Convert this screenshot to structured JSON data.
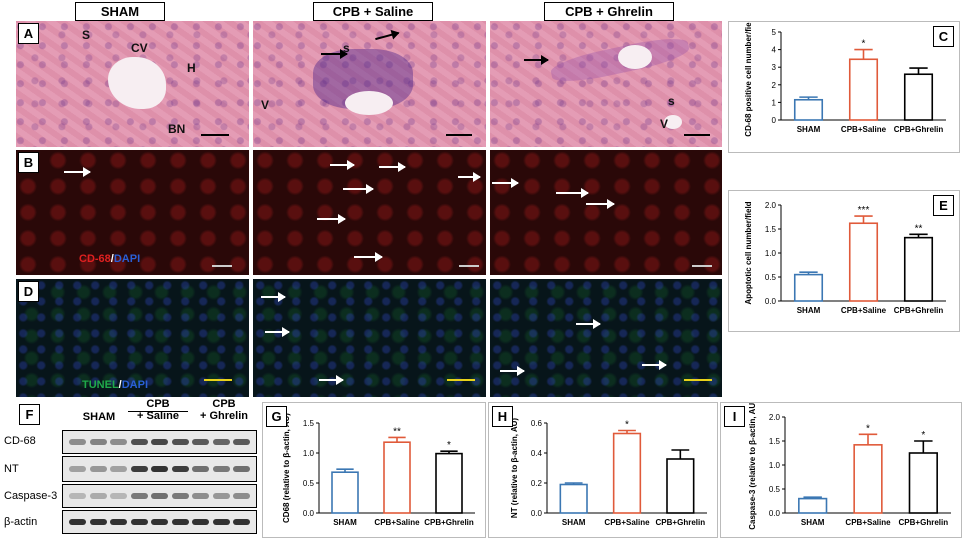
{
  "column_headers": [
    "SHAM",
    "CPB + Saline",
    "CPB + Ghrelin"
  ],
  "panel_letters": {
    "A": "A",
    "B": "B",
    "C": "C",
    "D": "D",
    "E": "E",
    "F": "F",
    "G": "G",
    "H": "H",
    "I": "I"
  },
  "he_annotations": {
    "s1": "S",
    "cv": "CV",
    "h": "H",
    "bn": "BN",
    "s2": "s",
    "v2": "V",
    "s3": "s",
    "v3": "V"
  },
  "stain_b": {
    "a": "CD-68",
    "sep": "/",
    "b": "DAPI"
  },
  "stain_d": {
    "a": "TUNEL",
    "sep": "/",
    "b": "DAPI"
  },
  "colors": {
    "sham": "#3b77b3",
    "saline": "#e05a3a",
    "ghrelin": "#000000",
    "cd68": "#e02020",
    "dapi": "#2a5fd6",
    "tunel": "#1fa84a"
  },
  "western": {
    "groups": [
      {
        "l1": "SHAM",
        "l2": ""
      },
      {
        "l1": "CPB",
        "l2": "+ Saline"
      },
      {
        "l1": "CPB",
        "l2": "+ Ghrelin"
      }
    ],
    "rows": [
      "CD-68",
      "NT",
      "Caspase-3",
      "β-actin"
    ]
  },
  "chart_data": [
    {
      "id": "C",
      "type": "bar",
      "categories": [
        "SHAM",
        "CPB+Saline",
        "CPB+Ghrelin"
      ],
      "values": [
        1.15,
        3.45,
        2.6
      ],
      "errors": [
        0.15,
        0.55,
        0.35
      ],
      "sig": [
        "",
        "*",
        ""
      ],
      "ylabel": "CD-68 positive cell number/field",
      "ylim": [
        0,
        5
      ],
      "yticks": [
        "0",
        "1",
        "2",
        "3",
        "4",
        "5"
      ],
      "ytickvals": [
        0,
        1,
        2,
        3,
        4,
        5
      ]
    },
    {
      "id": "E",
      "type": "bar",
      "categories": [
        "SHAM",
        "CPB+Saline",
        "CPB+Ghrelin"
      ],
      "values": [
        0.55,
        1.62,
        1.32
      ],
      "errors": [
        0.05,
        0.15,
        0.07
      ],
      "sig": [
        "",
        "***",
        "**"
      ],
      "ylabel": "Apoptotic cell number/field",
      "ylim": [
        0,
        2
      ],
      "yticks": [
        "0.0",
        "0.5",
        "1.0",
        "1.5",
        "2.0"
      ],
      "ytickvals": [
        0,
        0.5,
        1,
        1.5,
        2
      ]
    },
    {
      "id": "G",
      "type": "bar",
      "categories": [
        "SHAM",
        "CPB+Saline",
        "CPB+Ghrelin"
      ],
      "values": [
        0.68,
        1.18,
        0.99
      ],
      "errors": [
        0.05,
        0.08,
        0.04
      ],
      "sig": [
        "",
        "**",
        "*"
      ],
      "ylabel": "CD68 (relative to β-actin, AU)",
      "ylim": [
        0,
        1.5
      ],
      "yticks": [
        "0.0",
        "0.5",
        "1.0",
        "1.5"
      ],
      "ytickvals": [
        0,
        0.5,
        1,
        1.5
      ]
    },
    {
      "id": "H",
      "type": "bar",
      "categories": [
        "SHAM",
        "CPB+Saline",
        "CPB+Ghrelin"
      ],
      "values": [
        0.19,
        0.53,
        0.36
      ],
      "errors": [
        0.01,
        0.02,
        0.06
      ],
      "sig": [
        "",
        "*",
        ""
      ],
      "ylabel": "NT (relative to β-actin, AU)",
      "ylim": [
        0,
        0.6
      ],
      "yticks": [
        "0.0",
        "0.2",
        "0.4",
        "0.6"
      ],
      "ytickvals": [
        0,
        0.2,
        0.4,
        0.6
      ]
    },
    {
      "id": "I",
      "type": "bar",
      "categories": [
        "SHAM",
        "CPB+Saline",
        "CPB+Ghrelin"
      ],
      "values": [
        0.3,
        1.42,
        1.25
      ],
      "errors": [
        0.03,
        0.22,
        0.25
      ],
      "sig": [
        "",
        "*",
        "*"
      ],
      "ylabel": "Caspase-3 (relative to β-actin, AU)",
      "ylim": [
        0,
        2
      ],
      "yticks": [
        "0.0",
        "0.5",
        "1.0",
        "1.5",
        "2.0"
      ],
      "ytickvals": [
        0,
        0.5,
        1,
        1.5,
        2
      ]
    }
  ]
}
